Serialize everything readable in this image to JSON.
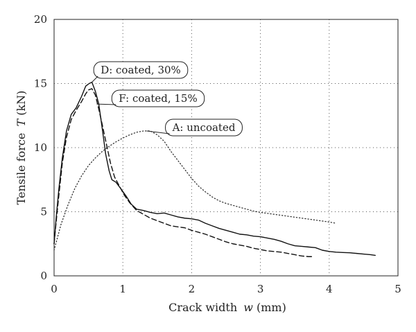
{
  "chart_data": {
    "type": "line",
    "title": "",
    "xlabel": "Crack width",
    "xlabel_var": "w",
    "xlabel_unit": " (mm)",
    "ylabel": "Tensile force",
    "ylabel_var": "T",
    "ylabel_unit": " (kN)",
    "xlim": [
      0,
      5
    ],
    "ylim": [
      0,
      20
    ],
    "x_ticks": [
      0,
      1,
      2,
      3,
      4,
      5
    ],
    "y_ticks": [
      0,
      5,
      10,
      15,
      20
    ],
    "grid": true,
    "series": [
      {
        "name": "D: coated, 30%",
        "style": "solid",
        "color": "#111111",
        "points": [
          [
            0.0,
            2.5
          ],
          [
            0.03,
            4.5
          ],
          [
            0.07,
            6.8
          ],
          [
            0.12,
            9.2
          ],
          [
            0.18,
            11.3
          ],
          [
            0.25,
            12.6
          ],
          [
            0.32,
            13.1
          ],
          [
            0.4,
            14.0
          ],
          [
            0.46,
            14.8
          ],
          [
            0.51,
            15.0
          ],
          [
            0.55,
            15.1
          ],
          [
            0.6,
            14.4
          ],
          [
            0.65,
            13.4
          ],
          [
            0.7,
            11.5
          ],
          [
            0.75,
            9.5
          ],
          [
            0.8,
            8.2
          ],
          [
            0.84,
            7.5
          ],
          [
            0.9,
            7.3
          ],
          [
            0.97,
            6.8
          ],
          [
            1.05,
            6.2
          ],
          [
            1.12,
            5.6
          ],
          [
            1.2,
            5.2
          ],
          [
            1.3,
            5.1
          ],
          [
            1.4,
            4.95
          ],
          [
            1.5,
            4.85
          ],
          [
            1.6,
            4.9
          ],
          [
            1.7,
            4.75
          ],
          [
            1.8,
            4.6
          ],
          [
            1.9,
            4.5
          ],
          [
            2.0,
            4.45
          ],
          [
            2.1,
            4.35
          ],
          [
            2.2,
            4.1
          ],
          [
            2.3,
            3.9
          ],
          [
            2.4,
            3.7
          ],
          [
            2.5,
            3.55
          ],
          [
            2.6,
            3.4
          ],
          [
            2.7,
            3.25
          ],
          [
            2.8,
            3.2
          ],
          [
            2.9,
            3.1
          ],
          [
            3.0,
            3.05
          ],
          [
            3.1,
            2.95
          ],
          [
            3.2,
            2.85
          ],
          [
            3.3,
            2.7
          ],
          [
            3.4,
            2.5
          ],
          [
            3.5,
            2.35
          ],
          [
            3.6,
            2.3
          ],
          [
            3.7,
            2.25
          ],
          [
            3.8,
            2.2
          ],
          [
            3.9,
            2.0
          ],
          [
            4.0,
            1.9
          ],
          [
            4.1,
            1.85
          ],
          [
            4.2,
            1.82
          ],
          [
            4.3,
            1.8
          ],
          [
            4.4,
            1.75
          ],
          [
            4.5,
            1.7
          ],
          [
            4.6,
            1.65
          ],
          [
            4.67,
            1.6
          ]
        ]
      },
      {
        "name": "F: coated, 15%",
        "style": "dashed",
        "color": "#111111",
        "points": [
          [
            0.0,
            2.5
          ],
          [
            0.03,
            4.2
          ],
          [
            0.07,
            6.3
          ],
          [
            0.12,
            8.8
          ],
          [
            0.18,
            10.8
          ],
          [
            0.25,
            12.2
          ],
          [
            0.32,
            12.9
          ],
          [
            0.4,
            13.6
          ],
          [
            0.46,
            14.2
          ],
          [
            0.5,
            14.5
          ],
          [
            0.55,
            14.6
          ],
          [
            0.6,
            14.1
          ],
          [
            0.65,
            13.0
          ],
          [
            0.7,
            11.8
          ],
          [
            0.76,
            10.3
          ],
          [
            0.82,
            8.8
          ],
          [
            0.88,
            7.7
          ],
          [
            0.95,
            7.0
          ],
          [
            1.02,
            6.3
          ],
          [
            1.1,
            5.7
          ],
          [
            1.2,
            5.1
          ],
          [
            1.3,
            4.8
          ],
          [
            1.4,
            4.5
          ],
          [
            1.5,
            4.3
          ],
          [
            1.6,
            4.1
          ],
          [
            1.7,
            3.9
          ],
          [
            1.8,
            3.82
          ],
          [
            1.9,
            3.75
          ],
          [
            2.0,
            3.55
          ],
          [
            2.1,
            3.4
          ],
          [
            2.2,
            3.25
          ],
          [
            2.3,
            3.05
          ],
          [
            2.4,
            2.85
          ],
          [
            2.5,
            2.65
          ],
          [
            2.6,
            2.5
          ],
          [
            2.7,
            2.4
          ],
          [
            2.8,
            2.3
          ],
          [
            2.9,
            2.15
          ],
          [
            3.0,
            2.05
          ],
          [
            3.1,
            1.95
          ],
          [
            3.2,
            1.9
          ],
          [
            3.3,
            1.85
          ],
          [
            3.4,
            1.75
          ],
          [
            3.5,
            1.65
          ],
          [
            3.6,
            1.55
          ],
          [
            3.7,
            1.5
          ],
          [
            3.75,
            1.5
          ]
        ]
      },
      {
        "name": "A: uncoated",
        "style": "dotted",
        "color": "#333333",
        "points": [
          [
            0.0,
            2.0
          ],
          [
            0.05,
            3.0
          ],
          [
            0.1,
            4.0
          ],
          [
            0.2,
            5.5
          ],
          [
            0.3,
            6.8
          ],
          [
            0.4,
            7.8
          ],
          [
            0.5,
            8.6
          ],
          [
            0.6,
            9.2
          ],
          [
            0.7,
            9.7
          ],
          [
            0.8,
            10.1
          ],
          [
            0.9,
            10.45
          ],
          [
            1.0,
            10.75
          ],
          [
            1.1,
            11.0
          ],
          [
            1.2,
            11.2
          ],
          [
            1.3,
            11.3
          ],
          [
            1.4,
            11.3
          ],
          [
            1.5,
            11.0
          ],
          [
            1.6,
            10.5
          ],
          [
            1.7,
            9.7
          ],
          [
            1.8,
            9.0
          ],
          [
            1.9,
            8.3
          ],
          [
            2.0,
            7.6
          ],
          [
            2.1,
            7.0
          ],
          [
            2.2,
            6.55
          ],
          [
            2.3,
            6.15
          ],
          [
            2.4,
            5.85
          ],
          [
            2.5,
            5.65
          ],
          [
            2.6,
            5.5
          ],
          [
            2.7,
            5.35
          ],
          [
            2.8,
            5.2
          ],
          [
            2.9,
            5.05
          ],
          [
            3.0,
            4.95
          ],
          [
            3.2,
            4.8
          ],
          [
            3.4,
            4.65
          ],
          [
            3.6,
            4.5
          ],
          [
            3.8,
            4.35
          ],
          [
            4.0,
            4.2
          ],
          [
            4.1,
            4.1
          ]
        ]
      }
    ],
    "annotations": [
      {
        "name": "label-d",
        "text": "D: coated, 30%",
        "anchor": [
          0.55,
          15.1
        ]
      },
      {
        "name": "label-f",
        "text": "F: coated, 15%",
        "anchor": [
          0.62,
          13.4
        ]
      },
      {
        "name": "label-a",
        "text": "A: uncoated",
        "anchor": [
          1.35,
          11.3
        ]
      }
    ]
  }
}
